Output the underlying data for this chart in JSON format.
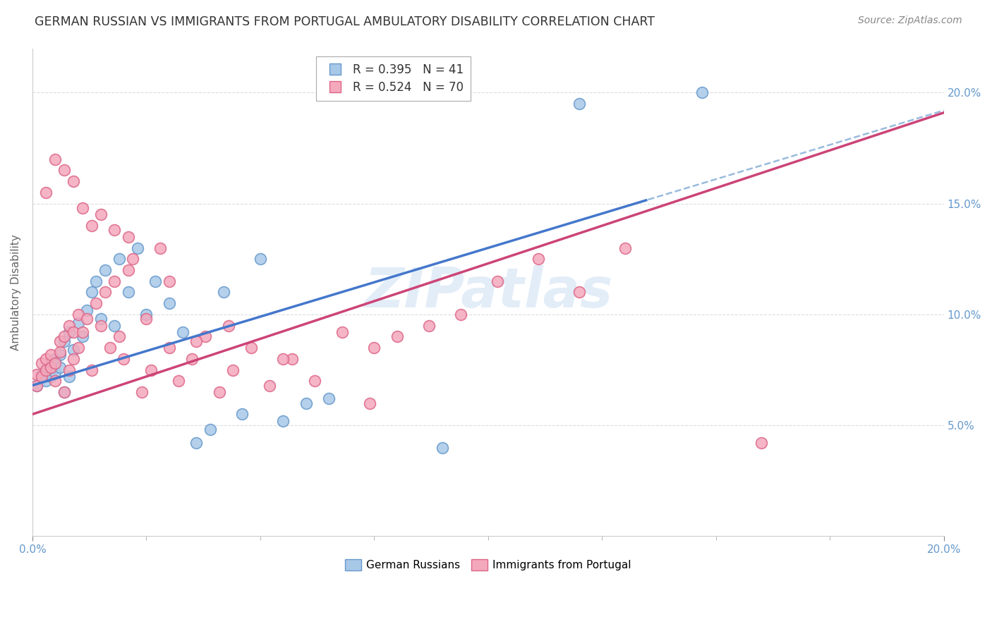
{
  "title": "GERMAN RUSSIAN VS IMMIGRANTS FROM PORTUGAL AMBULATORY DISABILITY CORRELATION CHART",
  "source": "Source: ZipAtlas.com",
  "ylabel": "Ambulatory Disability",
  "xlim": [
    0.0,
    0.2
  ],
  "ylim": [
    0.0,
    0.22
  ],
  "ytick_values": [
    0.05,
    0.1,
    0.15,
    0.2
  ],
  "xtick_minor_values": [
    0.025,
    0.05,
    0.075,
    0.1,
    0.125,
    0.15,
    0.175
  ],
  "watermark": "ZIPatlas",
  "series1_color": "#a8c8e8",
  "series2_color": "#f4a8bc",
  "series1_edge": "#6699cc",
  "series2_edge": "#dd6688",
  "trendline1_color": "#4477cc",
  "trendline2_color": "#cc4477",
  "trendline1_dashed_color": "#99bbdd",
  "background_color": "#ffffff",
  "grid_color": "#dddddd",
  "title_color": "#333333",
  "axis_label_color": "#6699cc",
  "source_color": "#888888",
  "series1_R": 0.395,
  "series1_N": 41,
  "series2_R": 0.524,
  "series2_N": 70,
  "trendline1_solid_end": 0.135,
  "trendline1_intercept": 0.068,
  "trendline1_slope": 0.62,
  "trendline2_intercept": 0.055,
  "trendline2_slope": 0.68,
  "german_russian_x": [
    0.001,
    0.002,
    0.003,
    0.003,
    0.004,
    0.004,
    0.005,
    0.005,
    0.006,
    0.006,
    0.007,
    0.007,
    0.008,
    0.008,
    0.009,
    0.01,
    0.011,
    0.012,
    0.013,
    0.014,
    0.015,
    0.016,
    0.018,
    0.019,
    0.021,
    0.023,
    0.025,
    0.027,
    0.03,
    0.033,
    0.036,
    0.039,
    0.042,
    0.046,
    0.05,
    0.055,
    0.06,
    0.065,
    0.09,
    0.12,
    0.147
  ],
  "german_russian_y": [
    0.068,
    0.073,
    0.07,
    0.075,
    0.072,
    0.078,
    0.074,
    0.08,
    0.076,
    0.082,
    0.065,
    0.088,
    0.072,
    0.092,
    0.084,
    0.096,
    0.09,
    0.102,
    0.11,
    0.115,
    0.098,
    0.12,
    0.095,
    0.125,
    0.11,
    0.13,
    0.1,
    0.115,
    0.105,
    0.092,
    0.042,
    0.048,
    0.11,
    0.055,
    0.125,
    0.052,
    0.06,
    0.062,
    0.04,
    0.195,
    0.2
  ],
  "portugal_x": [
    0.001,
    0.001,
    0.002,
    0.002,
    0.003,
    0.003,
    0.004,
    0.004,
    0.005,
    0.005,
    0.006,
    0.006,
    0.007,
    0.007,
    0.008,
    0.008,
    0.009,
    0.009,
    0.01,
    0.01,
    0.011,
    0.012,
    0.013,
    0.014,
    0.015,
    0.016,
    0.017,
    0.018,
    0.019,
    0.02,
    0.021,
    0.022,
    0.024,
    0.026,
    0.028,
    0.03,
    0.032,
    0.035,
    0.038,
    0.041,
    0.044,
    0.048,
    0.052,
    0.057,
    0.062,
    0.068,
    0.074,
    0.08,
    0.087,
    0.094,
    0.102,
    0.111,
    0.12,
    0.13,
    0.003,
    0.005,
    0.007,
    0.009,
    0.011,
    0.013,
    0.015,
    0.018,
    0.021,
    0.025,
    0.03,
    0.036,
    0.043,
    0.055,
    0.075,
    0.16
  ],
  "portugal_y": [
    0.068,
    0.073,
    0.072,
    0.078,
    0.075,
    0.08,
    0.076,
    0.082,
    0.07,
    0.078,
    0.083,
    0.088,
    0.065,
    0.09,
    0.075,
    0.095,
    0.08,
    0.092,
    0.085,
    0.1,
    0.092,
    0.098,
    0.075,
    0.105,
    0.095,
    0.11,
    0.085,
    0.115,
    0.09,
    0.08,
    0.12,
    0.125,
    0.065,
    0.075,
    0.13,
    0.085,
    0.07,
    0.08,
    0.09,
    0.065,
    0.075,
    0.085,
    0.068,
    0.08,
    0.07,
    0.092,
    0.06,
    0.09,
    0.095,
    0.1,
    0.115,
    0.125,
    0.11,
    0.13,
    0.155,
    0.17,
    0.165,
    0.16,
    0.148,
    0.14,
    0.145,
    0.138,
    0.135,
    0.098,
    0.115,
    0.088,
    0.095,
    0.08,
    0.085,
    0.042
  ]
}
